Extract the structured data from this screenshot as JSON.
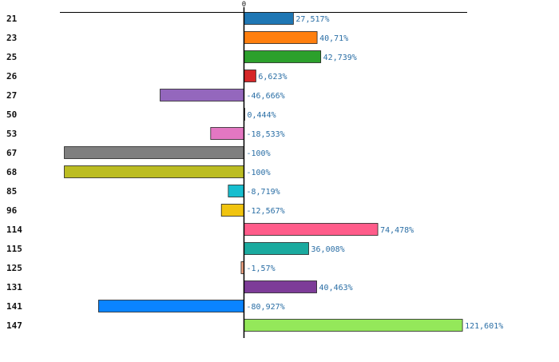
{
  "chart_data": {
    "type": "bar",
    "orientation": "horizontal",
    "title": "",
    "xlabel": "",
    "ylabel": "",
    "x_tick_labels": [
      "0"
    ],
    "xlim": [
      -100,
      121.601
    ],
    "grid": false,
    "legend": "none",
    "highlighted_category": "26",
    "categories": [
      "21",
      "23",
      "25",
      "26",
      "27",
      "50",
      "53",
      "67",
      "68",
      "85",
      "96",
      "114",
      "115",
      "125",
      "131",
      "141",
      "147"
    ],
    "values": [
      27.517,
      40.71,
      42.739,
      6.623,
      -46.666,
      0.444,
      -18.533,
      -100,
      -100,
      -8.719,
      -12.567,
      74.478,
      36.008,
      -1.57,
      40.463,
      -80.927,
      121.601
    ],
    "value_labels": [
      "27,517%",
      "40,71%",
      "42,739%",
      "6,623%",
      "-46,666%",
      "0,444%",
      "-18,533%",
      "-100%",
      "-100%",
      "-8,719%",
      "-12,567%",
      "74,478%",
      "36,008%",
      "-1,57%",
      "40,463%",
      "-80,927%",
      "121,601%"
    ],
    "colors": [
      "#1f77b4",
      "#ff7f0e",
      "#2ca02c",
      "#d62728",
      "#9467bd",
      "#8c564b",
      "#e377c2",
      "#7f7f7f",
      "#bcbd22",
      "#17becf",
      "#f1c40f",
      "#ff5c8a",
      "#1aaa9f",
      "#f4a582",
      "#7d3c98",
      "#0a84ff",
      "#94e85a"
    ],
    "highlight_color": "#d62728",
    "axis_color": "#000000"
  }
}
